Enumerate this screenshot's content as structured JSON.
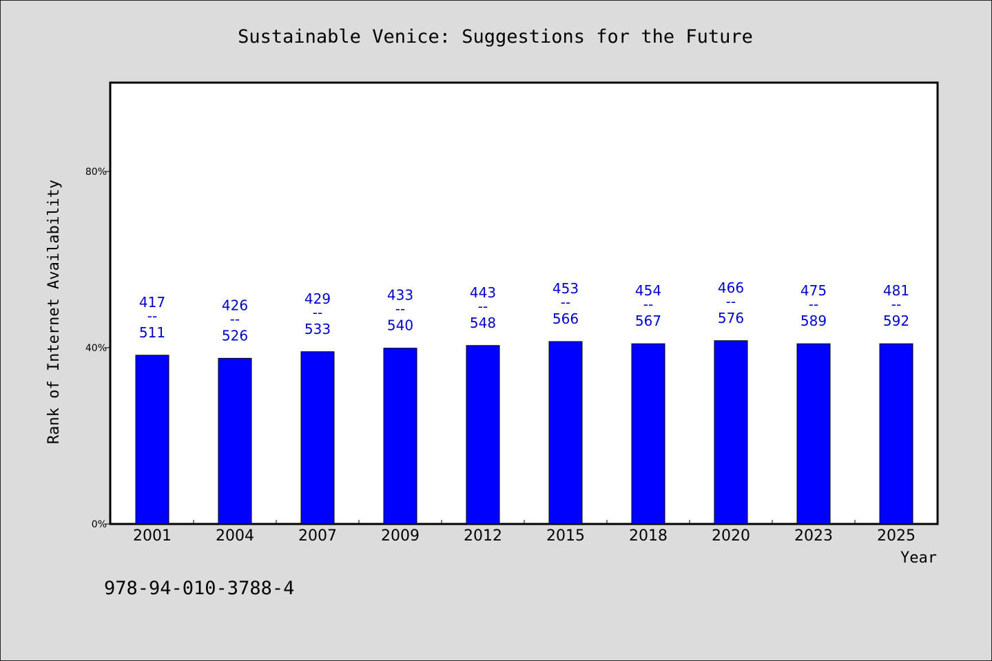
{
  "chart_data": {
    "type": "bar",
    "title": "Sustainable Venice: Suggestions for the Future",
    "xlabel": "Year",
    "ylabel": "Rank of Internet Availability",
    "categories": [
      "2001",
      "2004",
      "2007",
      "2009",
      "2012",
      "2015",
      "2018",
      "2020",
      "2023",
      "2025"
    ],
    "values": [
      38.3,
      37.6,
      39.1,
      39.9,
      40.5,
      41.4,
      40.9,
      41.6,
      40.9,
      40.9
    ],
    "data_labels": [
      {
        "top": "417",
        "sep": "--",
        "bottom": "511"
      },
      {
        "top": "426",
        "sep": "--",
        "bottom": "526"
      },
      {
        "top": "429",
        "sep": "--",
        "bottom": "533"
      },
      {
        "top": "433",
        "sep": "--",
        "bottom": "540"
      },
      {
        "top": "443",
        "sep": "--",
        "bottom": "548"
      },
      {
        "top": "453",
        "sep": "--",
        "bottom": "566"
      },
      {
        "top": "454",
        "sep": "--",
        "bottom": "567"
      },
      {
        "top": "466",
        "sep": "--",
        "bottom": "576"
      },
      {
        "top": "475",
        "sep": "--",
        "bottom": "589"
      },
      {
        "top": "481",
        "sep": "--",
        "bottom": "592"
      }
    ],
    "ylim": [
      0,
      100
    ],
    "yticks": [
      {
        "value": 0,
        "label": "0%"
      },
      {
        "value": 40,
        "label": "40%"
      },
      {
        "value": 80,
        "label": "80%"
      }
    ],
    "grid": false,
    "bar_color": "#0000ff",
    "label_color": "#0000cc"
  },
  "footnote": "978-94-010-3788-4"
}
